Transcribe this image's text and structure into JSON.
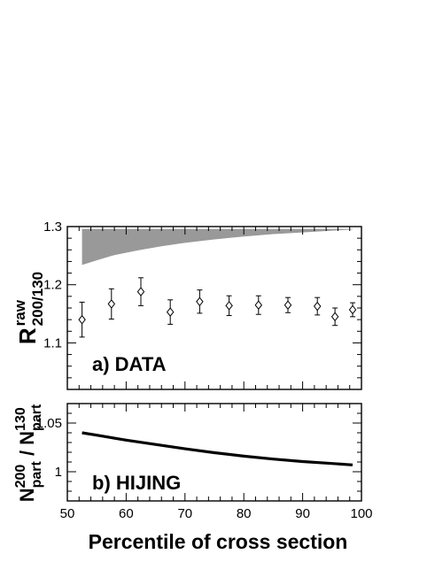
{
  "chart_data": [
    {
      "panel": "a",
      "type": "scatter",
      "label": "a) DATA",
      "ylabel": {
        "base": "R",
        "sup": "raw",
        "sub": "200/130"
      },
      "xlabel": "Percentile of cross section",
      "xlim": [
        50,
        100
      ],
      "ylim": [
        1.02,
        1.3
      ],
      "yticks": [
        1.1,
        1.2,
        1.3
      ],
      "ytick_labels": [
        "1.1",
        "1.2",
        "1.3"
      ],
      "grid": false,
      "points": [
        {
          "x": 52.5,
          "y": 1.14,
          "err": 0.03
        },
        {
          "x": 57.5,
          "y": 1.167,
          "err": 0.026
        },
        {
          "x": 62.5,
          "y": 1.188,
          "err": 0.024
        },
        {
          "x": 67.5,
          "y": 1.153,
          "err": 0.021
        },
        {
          "x": 72.5,
          "y": 1.171,
          "err": 0.02
        },
        {
          "x": 77.5,
          "y": 1.164,
          "err": 0.017
        },
        {
          "x": 82.5,
          "y": 1.165,
          "err": 0.016
        },
        {
          "x": 87.5,
          "y": 1.165,
          "err": 0.013
        },
        {
          "x": 92.5,
          "y": 1.163,
          "err": 0.015
        },
        {
          "x": 95.5,
          "y": 1.145,
          "err": 0.015
        },
        {
          "x": 98.5,
          "y": 1.157,
          "err": 0.012
        }
      ],
      "band": {
        "color": "#999999",
        "x": [
          52.5,
          55,
          58,
          62,
          66,
          70,
          75,
          80,
          85,
          90,
          95,
          98.5
        ],
        "upper": [
          1.296,
          1.296,
          1.296,
          1.296,
          1.296,
          1.296,
          1.296,
          1.296,
          1.296,
          1.296,
          1.296,
          1.296
        ],
        "lower": [
          1.234,
          1.242,
          1.251,
          1.259,
          1.266,
          1.272,
          1.278,
          1.283,
          1.287,
          1.29,
          1.293,
          1.295
        ]
      }
    },
    {
      "panel": "b",
      "type": "line",
      "label": "b) HIJING",
      "ylabel": {
        "num": "N",
        "num_sup": "200",
        "num_sub": "part",
        "den": "N",
        "den_sup": "130",
        "den_sub": "part"
      },
      "xlabel": "Percentile of cross section",
      "xlim": [
        50,
        100
      ],
      "ylim": [
        0.97,
        1.07
      ],
      "yticks": [
        1.0,
        1.05
      ],
      "ytick_labels": [
        "1",
        "1.05"
      ],
      "xticks": [
        50,
        60,
        70,
        80,
        90,
        100
      ],
      "xtick_labels": [
        "50",
        "60",
        "70",
        "80",
        "90",
        "100"
      ],
      "grid": false,
      "x": [
        52.5,
        55,
        60,
        65,
        70,
        75,
        80,
        85,
        90,
        95,
        98.5
      ],
      "y": [
        1.04,
        1.0375,
        1.0325,
        1.028,
        1.0235,
        1.0195,
        1.016,
        1.013,
        1.0105,
        1.0085,
        1.007
      ]
    }
  ]
}
